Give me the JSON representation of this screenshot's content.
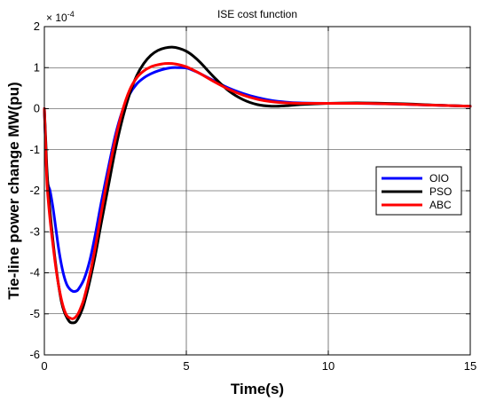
{
  "chart_data": {
    "type": "line",
    "title": "ISE cost function",
    "xlabel": "Time(s)",
    "ylabel": "Tie-line power change MW(pu)",
    "y_exponent_base": "× 10",
    "y_exponent_power": "-4",
    "xlim": [
      0,
      15
    ],
    "ylim": [
      -6,
      2
    ],
    "x_ticks": [
      0,
      5,
      10,
      15
    ],
    "y_ticks": [
      -6,
      -5,
      -4,
      -3,
      -2,
      -1,
      0,
      1,
      2
    ],
    "grid": true,
    "legend_position": "right",
    "series": [
      {
        "name": "OIO",
        "color": "#0000ff",
        "x": [
          0,
          0.05,
          0.1,
          0.15,
          0.2,
          0.3,
          0.4,
          0.5,
          0.6,
          0.7,
          0.8,
          0.9,
          1.0,
          1.1,
          1.2,
          1.4,
          1.6,
          1.8,
          2.0,
          2.25,
          2.5,
          2.75,
          3.0,
          3.25,
          3.5,
          3.75,
          4.0,
          4.25,
          4.5,
          4.75,
          5.0,
          5.25,
          5.5,
          6.0,
          6.5,
          7.0,
          7.5,
          8.0,
          8.5,
          9.0,
          10.0,
          11.0,
          12.0,
          13.0,
          14.0,
          15.0
        ],
        "y": [
          0,
          -1.0,
          -1.7,
          -1.9,
          -2.0,
          -2.4,
          -2.9,
          -3.4,
          -3.8,
          -4.1,
          -4.3,
          -4.4,
          -4.45,
          -4.45,
          -4.4,
          -4.15,
          -3.7,
          -3.05,
          -2.3,
          -1.45,
          -0.65,
          -0.05,
          0.35,
          0.6,
          0.75,
          0.85,
          0.92,
          0.97,
          1.0,
          1.0,
          0.99,
          0.93,
          0.85,
          0.67,
          0.5,
          0.37,
          0.27,
          0.2,
          0.16,
          0.14,
          0.13,
          0.13,
          0.12,
          0.1,
          0.08,
          0.06
        ]
      },
      {
        "name": "PSO",
        "color": "#000000",
        "x": [
          0,
          0.05,
          0.1,
          0.2,
          0.3,
          0.4,
          0.5,
          0.6,
          0.7,
          0.8,
          0.9,
          1.0,
          1.1,
          1.2,
          1.3,
          1.4,
          1.6,
          1.8,
          2.0,
          2.25,
          2.5,
          2.75,
          3.0,
          3.25,
          3.5,
          3.75,
          4.0,
          4.25,
          4.5,
          4.75,
          5.0,
          5.25,
          5.5,
          6.0,
          6.5,
          7.0,
          7.5,
          8.0,
          8.5,
          9.0,
          10.0,
          11.0,
          12.0,
          13.0,
          14.0,
          15.0
        ],
        "y": [
          0,
          -0.8,
          -1.6,
          -2.5,
          -3.2,
          -3.8,
          -4.3,
          -4.7,
          -4.95,
          -5.1,
          -5.2,
          -5.22,
          -5.2,
          -5.1,
          -4.95,
          -4.75,
          -4.2,
          -3.55,
          -2.8,
          -1.9,
          -1.0,
          -0.25,
          0.35,
          0.8,
          1.1,
          1.3,
          1.42,
          1.48,
          1.5,
          1.47,
          1.4,
          1.28,
          1.12,
          0.75,
          0.43,
          0.22,
          0.1,
          0.06,
          0.07,
          0.1,
          0.13,
          0.14,
          0.13,
          0.11,
          0.08,
          0.06
        ]
      },
      {
        "name": "ABC",
        "color": "#ff0000",
        "x": [
          0,
          0.05,
          0.1,
          0.2,
          0.3,
          0.4,
          0.5,
          0.6,
          0.7,
          0.8,
          0.9,
          1.0,
          1.1,
          1.2,
          1.3,
          1.4,
          1.6,
          1.8,
          2.0,
          2.25,
          2.5,
          2.75,
          3.0,
          3.25,
          3.5,
          3.75,
          4.0,
          4.25,
          4.5,
          4.75,
          5.0,
          5.25,
          5.5,
          6.0,
          6.5,
          7.0,
          7.5,
          8.0,
          8.5,
          9.0,
          10.0,
          11.0,
          12.0,
          13.0,
          14.0,
          15.0
        ],
        "y": [
          0,
          -1.0,
          -1.9,
          -2.7,
          -3.3,
          -3.85,
          -4.3,
          -4.65,
          -4.9,
          -5.05,
          -5.1,
          -5.12,
          -5.08,
          -4.98,
          -4.82,
          -4.62,
          -4.05,
          -3.35,
          -2.55,
          -1.6,
          -0.75,
          -0.05,
          0.45,
          0.75,
          0.92,
          1.02,
          1.07,
          1.1,
          1.1,
          1.07,
          1.02,
          0.94,
          0.85,
          0.65,
          0.47,
          0.33,
          0.23,
          0.17,
          0.14,
          0.13,
          0.13,
          0.13,
          0.12,
          0.1,
          0.08,
          0.06
        ]
      }
    ]
  }
}
